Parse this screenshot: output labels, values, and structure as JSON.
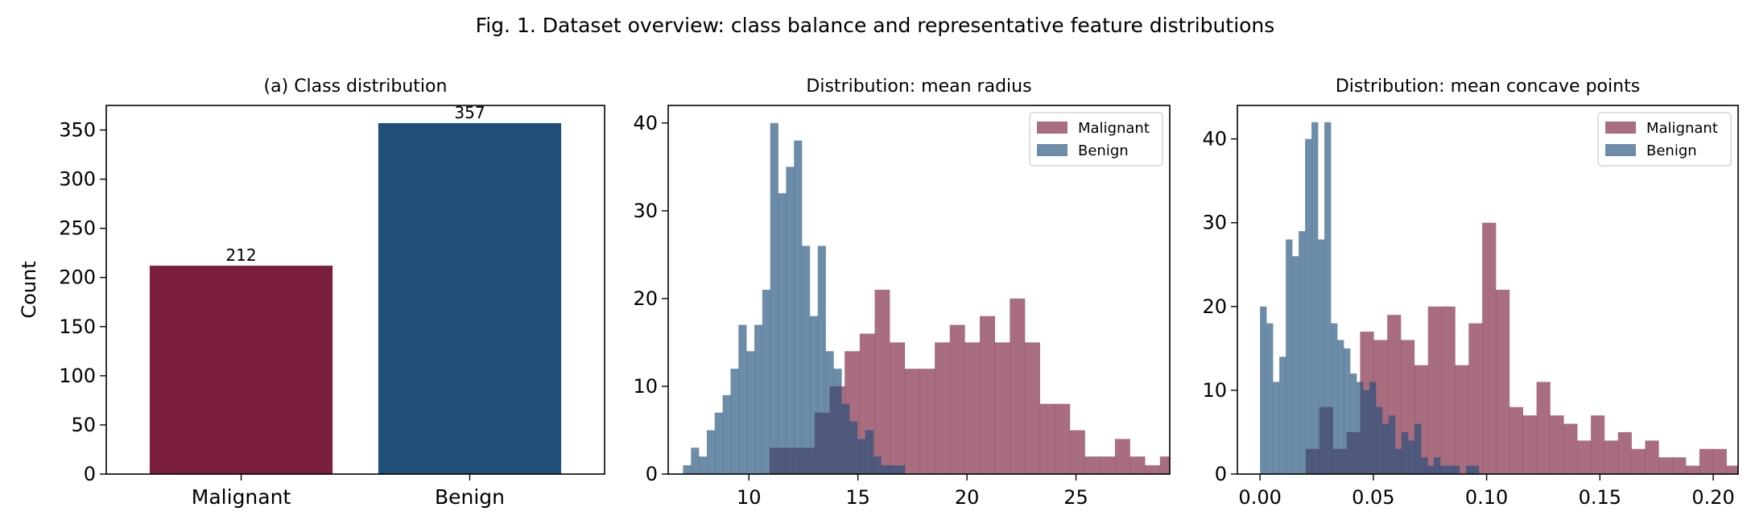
{
  "figure": {
    "title": "Fig. 1. Dataset overview: class balance and representative feature distributions"
  },
  "colors": {
    "malignant": "#7b1e3c",
    "benign": "#1f4e79",
    "overlap": "#4c5077"
  },
  "chart_data": [
    {
      "id": "class-distribution",
      "type": "bar",
      "title": "(a) Class distribution",
      "xlabel": "",
      "ylabel": "Count",
      "categories": [
        "Malignant",
        "Benign"
      ],
      "values": [
        212,
        357
      ],
      "data_labels": [
        "212",
        "357"
      ],
      "colors": [
        "#7b1e3c",
        "#1f4e79"
      ],
      "ylim": [
        0,
        375
      ],
      "yticks": [
        0,
        50,
        100,
        150,
        200,
        250,
        300,
        350
      ],
      "grid": false
    },
    {
      "id": "mean-radius",
      "type": "bar",
      "subtype": "histogram-overlay",
      "title": "Distribution: mean radius",
      "xlabel": "",
      "ylabel": "",
      "xlim": [
        6.3,
        29.3
      ],
      "ylim": [
        0,
        42
      ],
      "xticks": [
        10,
        15,
        20,
        25
      ],
      "yticks": [
        0,
        10,
        20,
        30,
        40
      ],
      "legend": "top-right",
      "grid": false,
      "series": [
        {
          "name": "Malignant",
          "color": "#7b1e3c",
          "opacity": 0.65,
          "bin_start": 10.95,
          "bin_width": 0.6885,
          "values": [
            3,
            3,
            3,
            7,
            10,
            14,
            16,
            21,
            15,
            12,
            12,
            15,
            17,
            15,
            18,
            15,
            20,
            15,
            8,
            8,
            5,
            2,
            2,
            4,
            2,
            1,
            2,
            2,
            0,
            2,
            1
          ]
        },
        {
          "name": "Benign",
          "color": "#1f4e79",
          "opacity": 0.65,
          "bin_start": 6.98,
          "bin_width": 0.3634,
          "values": [
            1,
            3,
            2,
            5,
            7,
            9,
            12,
            17,
            14,
            17,
            21,
            40,
            32,
            35,
            38,
            26,
            18,
            26,
            14,
            12,
            8,
            6,
            4,
            5,
            2,
            1,
            1,
            1
          ]
        }
      ]
    },
    {
      "id": "mean-concave-points",
      "type": "bar",
      "subtype": "histogram-overlay",
      "title": "Distribution: mean concave points",
      "xlabel": "",
      "ylabel": "",
      "xlim": [
        -0.01,
        0.211
      ],
      "ylim": [
        0,
        44
      ],
      "xticks": [
        0.0,
        0.05,
        0.1,
        0.15,
        0.2
      ],
      "xtick_labels": [
        "0.00",
        "0.05",
        "0.10",
        "0.15",
        "0.20"
      ],
      "yticks": [
        0,
        10,
        20,
        30,
        40
      ],
      "legend": "top-right",
      "grid": false,
      "series": [
        {
          "name": "Malignant",
          "color": "#7b1e3c",
          "opacity": 0.65,
          "bin_start": 0.0202,
          "bin_width": 0.00599,
          "values": [
            3,
            8,
            3,
            5,
            17,
            16,
            19,
            16,
            13,
            20,
            20,
            13,
            18,
            30,
            22,
            8,
            7,
            11,
            7,
            6,
            4,
            7,
            4,
            5,
            3,
            4,
            2,
            2,
            1,
            3,
            3,
            1
          ]
        },
        {
          "name": "Benign",
          "color": "#1f4e79",
          "opacity": 0.65,
          "bin_start": 0.0,
          "bin_width": 0.00284,
          "values": [
            20,
            18,
            11,
            14,
            28,
            26,
            29,
            40,
            42,
            28,
            42,
            18,
            16,
            15,
            12,
            11,
            10,
            11,
            8,
            6,
            7,
            3,
            5,
            4,
            6,
            2,
            1,
            2,
            1,
            1,
            1,
            0,
            1,
            1
          ]
        }
      ]
    }
  ]
}
